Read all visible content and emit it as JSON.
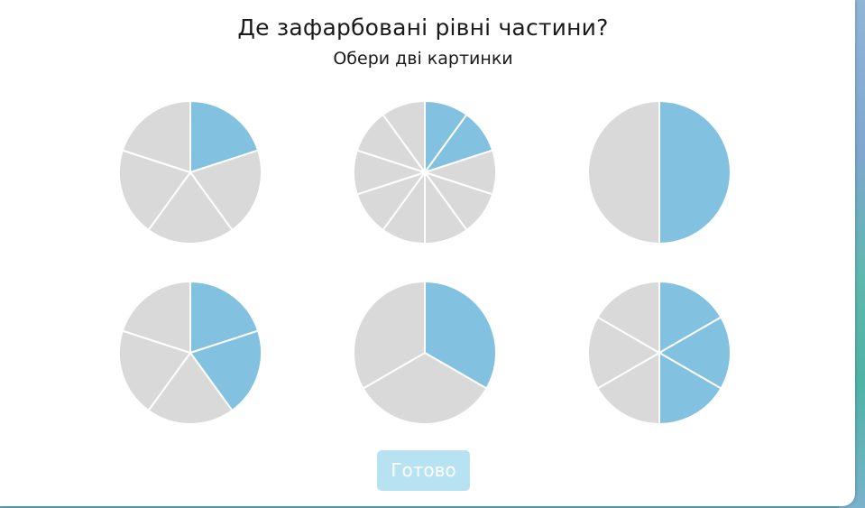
{
  "question": {
    "title": "Де зафарбовані рівні частини?",
    "subtitle": "Обери дві картинки"
  },
  "colors": {
    "shaded": "#82c2e0",
    "unshaded": "#d9d9d9",
    "divider": "#ffffff",
    "button_bg": "#b7e2f1",
    "button_text": "#ffffff"
  },
  "options": [
    {
      "id": "pie-1",
      "parts": 5,
      "shaded": 1
    },
    {
      "id": "pie-2",
      "parts": 10,
      "shaded": 2
    },
    {
      "id": "pie-3",
      "parts": 2,
      "shaded": 1
    },
    {
      "id": "pie-4",
      "parts": 5,
      "shaded": 2
    },
    {
      "id": "pie-5",
      "parts": 3,
      "shaded": 1
    },
    {
      "id": "pie-6",
      "parts": 6,
      "shaded": 3
    }
  ],
  "done_button": {
    "label": "Готово",
    "enabled": false
  }
}
